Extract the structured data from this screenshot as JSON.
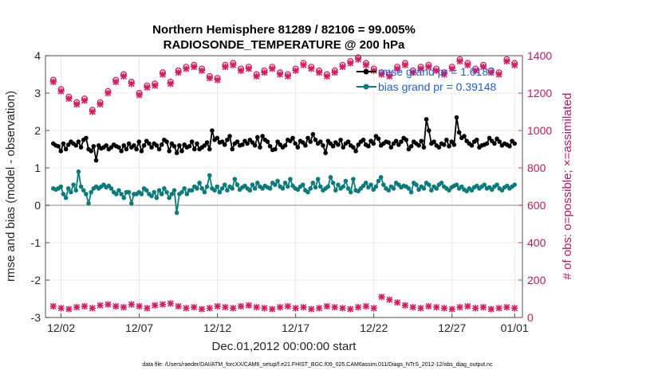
{
  "chart_data": {
    "type": "line",
    "title_line1": "Northern Hemisphere 81289 / 82106 = 99.005%",
    "title_line2": "RADIOSONDE_TEMPERATURE @ 200 hPa",
    "xlabel": "Dec.01,2012 00:00:00 start",
    "ylabel": "rmse and bias (model - observation)",
    "y2label": "# of obs: o=possible; ×=assimilated",
    "ylim": [
      -3,
      4
    ],
    "y2lim": [
      0,
      1400
    ],
    "xlim": [
      0,
      61
    ],
    "yticks": [
      "-3",
      "-2",
      "-1",
      "0",
      "1",
      "2",
      "3",
      "4"
    ],
    "y2ticks": [
      "0",
      "200",
      "400",
      "600",
      "800",
      "1000",
      "1200",
      "1400"
    ],
    "xticks": [
      {
        "x": 2,
        "label": "12/02"
      },
      {
        "x": 12,
        "label": "12/07"
      },
      {
        "x": 22,
        "label": "12/12"
      },
      {
        "x": 32,
        "label": "12/17"
      },
      {
        "x": 42,
        "label": "12/22"
      },
      {
        "x": 52,
        "label": "12/27"
      },
      {
        "x": 60,
        "label": "01/01"
      }
    ],
    "legend": [
      {
        "label": "rmse grand pr = 1.6187",
        "color": "#000000"
      },
      {
        "label": "bias grand pr = 0.39148",
        "color": "#0a7c7c"
      }
    ],
    "colors": {
      "rmse": "#000000",
      "bias": "#0a7c7c",
      "obs": "#d81b60",
      "zero": "#a0a0a0"
    },
    "series": [
      {
        "name": "rmse",
        "axis": "left",
        "values": [
          1.65,
          1.6,
          1.58,
          1.45,
          1.65,
          1.5,
          1.62,
          1.7,
          1.65,
          1.6,
          1.7,
          1.55,
          1.75,
          1.8,
          1.5,
          1.45,
          1.58,
          1.2,
          1.6,
          1.52,
          1.55,
          1.6,
          1.5,
          1.55,
          1.62,
          1.58,
          1.55,
          1.45,
          1.6,
          1.5,
          1.65,
          1.55,
          1.6,
          1.5,
          1.7,
          1.45,
          1.6,
          1.72,
          1.65,
          1.55,
          1.65,
          1.6,
          1.5,
          1.62,
          1.75,
          1.7,
          1.45,
          1.65,
          1.58,
          1.4,
          1.6,
          1.45,
          1.62,
          1.55,
          1.58,
          1.7,
          1.5,
          1.65,
          1.5,
          1.55,
          1.6,
          1.68,
          1.5,
          2.0,
          1.75,
          1.8,
          1.68,
          1.7,
          1.62,
          1.75,
          1.85,
          1.5,
          1.65,
          1.7,
          1.6,
          1.62,
          1.72,
          1.65,
          1.75,
          1.68,
          1.6,
          1.82,
          1.55,
          1.85,
          1.75,
          1.7,
          1.58,
          1.48,
          1.5,
          1.7,
          1.62,
          1.55,
          1.6,
          1.75,
          1.72,
          1.8,
          1.65,
          1.55,
          1.72,
          1.68,
          1.6,
          1.8,
          1.7,
          1.9,
          1.75,
          1.65,
          1.7,
          1.6,
          1.4,
          1.72,
          1.65,
          1.58,
          1.68,
          1.62,
          1.75,
          1.55,
          1.65,
          1.7,
          1.6,
          1.55,
          1.45,
          1.62,
          1.7,
          1.75,
          1.62,
          1.58,
          1.72,
          1.65,
          1.85,
          1.78,
          1.6,
          1.65,
          1.7,
          1.68,
          1.55,
          1.65,
          1.72,
          1.62,
          1.7,
          1.8,
          1.75,
          1.5,
          1.58,
          1.7,
          1.65,
          1.6,
          1.72,
          1.55,
          2.3,
          2.0,
          1.65,
          1.7,
          1.6,
          1.55,
          1.65,
          1.62,
          1.75,
          1.58,
          1.7,
          1.62,
          2.35,
          1.95,
          1.8,
          1.85,
          1.72,
          1.65,
          1.6,
          1.7,
          1.75,
          1.55,
          1.6,
          1.62,
          1.65,
          1.8,
          1.72,
          1.65,
          1.78,
          1.7,
          1.6,
          1.65,
          1.62,
          1.58,
          1.72,
          1.65
        ]
      },
      {
        "name": "bias",
        "axis": "left",
        "values": [
          0.45,
          0.42,
          0.45,
          0.5,
          0.3,
          0.2,
          0.45,
          0.35,
          0.55,
          0.4,
          0.9,
          0.5,
          0.4,
          0.3,
          0.05,
          0.35,
          0.45,
          0.5,
          0.45,
          0.5,
          0.55,
          0.48,
          0.52,
          0.45,
          0.35,
          0.3,
          0.4,
          0.3,
          0.2,
          0.35,
          0.35,
          0.05,
          0.3,
          0.3,
          0.35,
          0.3,
          0.45,
          0.4,
          0.3,
          0.25,
          0.35,
          0.2,
          0.4,
          0.3,
          0.45,
          0.35,
          0.2,
          0.3,
          0.4,
          -0.2,
          0.3,
          0.35,
          0.45,
          0.3,
          0.4,
          0.4,
          0.5,
          0.45,
          0.6,
          0.45,
          0.35,
          0.5,
          0.8,
          0.45,
          0.4,
          0.5,
          0.35,
          0.45,
          0.55,
          0.4,
          0.5,
          0.45,
          0.7,
          0.55,
          0.42,
          0.48,
          0.52,
          0.45,
          0.4,
          0.55,
          0.45,
          0.6,
          0.5,
          0.45,
          0.52,
          0.48,
          0.45,
          0.6,
          0.55,
          0.65,
          0.5,
          0.45,
          0.6,
          0.5,
          0.7,
          0.52,
          0.45,
          0.42,
          0.5,
          0.55,
          0.4,
          0.35,
          0.45,
          0.6,
          0.48,
          0.7,
          0.5,
          0.4,
          0.45,
          0.5,
          0.75,
          0.6,
          0.4,
          0.55,
          0.45,
          0.5,
          0.65,
          0.45,
          0.35,
          0.7,
          0.4,
          0.38,
          0.45,
          0.52,
          0.6,
          0.48,
          0.55,
          0.42,
          0.5,
          0.65,
          0.75,
          0.55,
          0.45,
          0.4,
          0.5,
          0.45,
          0.6,
          0.55,
          0.48,
          0.52,
          0.5,
          0.45,
          0.35,
          0.6,
          0.55,
          0.42,
          0.5,
          0.45,
          0.6,
          0.55,
          0.4,
          0.5,
          0.45,
          0.55,
          0.6,
          0.5,
          0.45,
          0.4,
          0.48,
          0.52,
          0.55,
          0.45,
          0.5,
          0.42,
          0.38,
          0.45,
          0.4,
          0.48,
          0.52,
          0.45,
          0.5,
          0.55,
          0.45,
          0.48,
          0.42,
          0.5,
          0.55,
          0.45,
          0.4,
          0.48,
          0.52,
          0.45,
          0.5,
          0.55
        ]
      },
      {
        "name": "obs_possible",
        "axis": "right",
        "values": [
          1270,
          1220,
          1180,
          1150,
          1170,
          1110,
          1150,
          1210,
          1270,
          1300,
          1260,
          1200,
          1240,
          1250,
          1310,
          1260,
          1320,
          1340,
          1350,
          1330,
          1290,
          1280,
          1350,
          1360,
          1330,
          1340,
          1300,
          1320,
          1340,
          1310,
          1300,
          1330,
          1360,
          1340,
          1320,
          1300,
          1320,
          1350,
          1370,
          1390,
          1360,
          1330,
          1310,
          1300,
          1340,
          1360,
          1320,
          1340,
          1350,
          1330,
          1310,
          1340,
          1380,
          1360,
          1330,
          1350,
          1320,
          1310,
          1380,
          1360
        ]
      },
      {
        "name": "obs_assimilated",
        "axis": "right",
        "values": [
          1260,
          1210,
          1170,
          1140,
          1160,
          1100,
          1140,
          1200,
          1260,
          1290,
          1250,
          1190,
          1230,
          1240,
          1300,
          1250,
          1310,
          1330,
          1340,
          1320,
          1280,
          1270,
          1340,
          1350,
          1320,
          1330,
          1290,
          1310,
          1330,
          1300,
          1290,
          1320,
          1350,
          1330,
          1310,
          1290,
          1310,
          1340,
          1360,
          1380,
          1350,
          1320,
          1300,
          1290,
          1330,
          1350,
          1310,
          1330,
          1340,
          1320,
          1300,
          1330,
          1370,
          1350,
          1320,
          1340,
          1310,
          1300,
          1370,
          1350
        ]
      },
      {
        "name": "obs_rejected",
        "axis": "right",
        "values": [
          60,
          50,
          45,
          55,
          60,
          50,
          65,
          70,
          60,
          55,
          70,
          60,
          50,
          65,
          70,
          75,
          60,
          50,
          55,
          45,
          50,
          60,
          55,
          50,
          60,
          65,
          55,
          50,
          45,
          55,
          60,
          50,
          55,
          45,
          50,
          60,
          55,
          50,
          45,
          55,
          60,
          50,
          110,
          95,
          80,
          65,
          55,
          50,
          60,
          55,
          50,
          45,
          55,
          60,
          50,
          55,
          45,
          50,
          55,
          50
        ]
      }
    ]
  },
  "footer": "data file: /Users/raeder/DAI/ATM_forcXX/CAM6_setup/f.e21.FHIST_BGC.f09_025.CAM6assim.011/Diags_NTrS_2012-12/obs_diag_output.nc"
}
